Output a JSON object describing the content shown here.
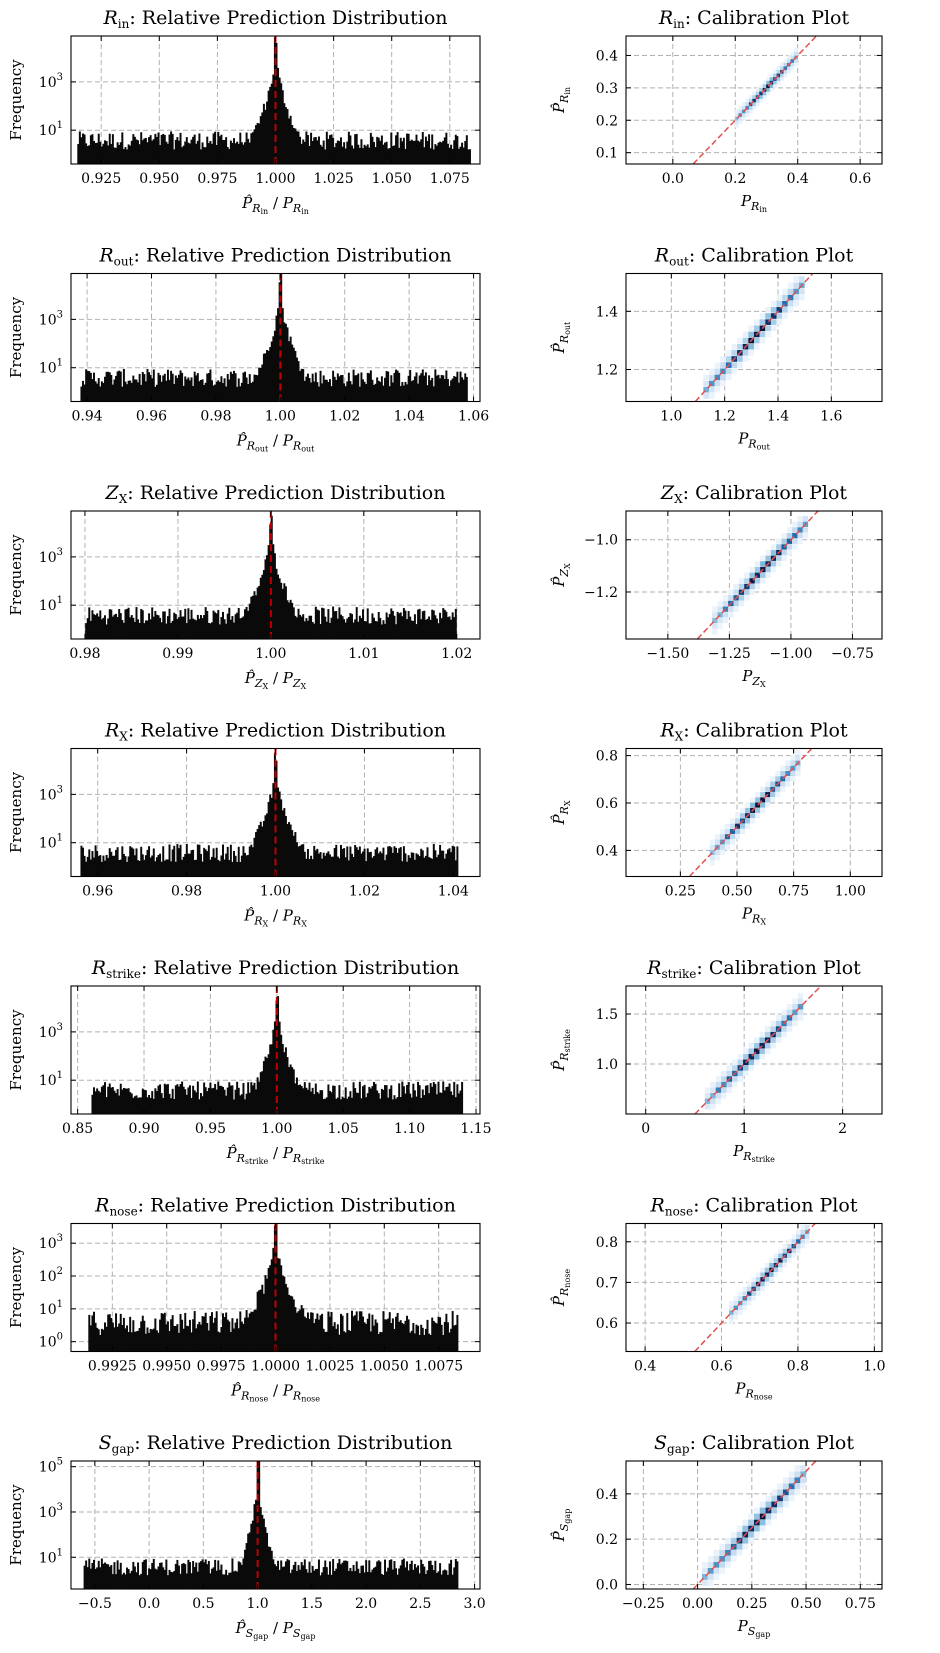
{
  "chart_data": [
    {
      "type": "bar",
      "title": {
        "var": "R",
        "sub": "in",
        "rest": ": Relative Prediction Distribution"
      },
      "xlabel": {
        "var": "R",
        "sub": "in"
      },
      "ylabel": "Frequency",
      "xlim": [
        0.912,
        1.088
      ],
      "xticks": [
        "0.925",
        "0.950",
        "0.975",
        "1.000",
        "1.025",
        "1.050",
        "1.075"
      ],
      "yscale": "log",
      "ylim_log10": [
        -0.4,
        4.9
      ],
      "yticks": [
        {
          "base": "10",
          "exp": "3",
          "log": 3
        },
        {
          "base": "10",
          "exp": "1",
          "log": 1
        }
      ],
      "reference_line_x": 1.0,
      "peak": 1.0,
      "peak_log10": 4.7,
      "tail_width": 0.0075,
      "tails": [
        0.915,
        1.084
      ],
      "grid": true
    },
    {
      "type": "bar",
      "title": {
        "var": "R",
        "sub": "out",
        "rest": ": Relative Prediction Distribution"
      },
      "xlabel": {
        "var": "R",
        "sub": "out"
      },
      "ylabel": "Frequency",
      "xlim": [
        0.935,
        1.062
      ],
      "xticks": [
        "0.94",
        "0.96",
        "0.98",
        "1.00",
        "1.02",
        "1.04",
        "1.06"
      ],
      "yscale": "log",
      "ylim_log10": [
        -0.4,
        4.9
      ],
      "yticks": [
        {
          "base": "10",
          "exp": "3",
          "log": 3
        },
        {
          "base": "10",
          "exp": "1",
          "log": 1
        }
      ],
      "reference_line_x": 1.0,
      "peak": 1.0,
      "peak_log10": 4.7,
      "tail_width": 0.0055,
      "tails": [
        0.938,
        1.058
      ],
      "grid": true
    },
    {
      "type": "bar",
      "title": {
        "var": "Z",
        "sub": "X",
        "rest": ": Relative Prediction Distribution"
      },
      "xlabel": {
        "var": "Z",
        "sub": "X"
      },
      "ylabel": "Frequency",
      "xlim": [
        0.9785,
        1.0225
      ],
      "xticks": [
        "0.98",
        "0.99",
        "1.00",
        "1.01",
        "1.02"
      ],
      "yscale": "log",
      "ylim_log10": [
        -0.4,
        4.9
      ],
      "yticks": [
        {
          "base": "10",
          "exp": "3",
          "log": 3
        },
        {
          "base": "10",
          "exp": "1",
          "log": 1
        }
      ],
      "reference_line_x": 1.0,
      "peak": 1.0,
      "peak_log10": 4.5,
      "tail_width": 0.0022,
      "tails": [
        0.98,
        1.02
      ],
      "grid": true
    },
    {
      "type": "bar",
      "title": {
        "var": "R",
        "sub": "X",
        "rest": ": Relative Prediction Distribution"
      },
      "xlabel": {
        "var": "R",
        "sub": "X"
      },
      "ylabel": "Frequency",
      "xlim": [
        0.954,
        1.046
      ],
      "xticks": [
        "0.96",
        "0.98",
        "1.00",
        "1.02",
        "1.04"
      ],
      "yscale": "log",
      "ylim_log10": [
        -0.4,
        4.9
      ],
      "yticks": [
        {
          "base": "10",
          "exp": "3",
          "log": 3
        },
        {
          "base": "10",
          "exp": "1",
          "log": 1
        }
      ],
      "reference_line_x": 1.0,
      "peak": 1.0,
      "peak_log10": 4.5,
      "tail_width": 0.0048,
      "tails": [
        0.956,
        1.041
      ],
      "grid": true
    },
    {
      "type": "bar",
      "title": {
        "var": "R",
        "sub": "strike",
        "rest": ": Relative Prediction Distribution"
      },
      "xlabel": {
        "var": "R",
        "sub": "strike"
      },
      "ylabel": "Frequency",
      "xlim": [
        0.845,
        1.153
      ],
      "xticks": [
        "0.85",
        "0.90",
        "0.95",
        "1.00",
        "1.05",
        "1.10",
        "1.15"
      ],
      "yscale": "log",
      "ylim_log10": [
        -0.4,
        4.9
      ],
      "yticks": [
        {
          "base": "10",
          "exp": "3",
          "log": 3
        },
        {
          "base": "10",
          "exp": "1",
          "log": 1
        }
      ],
      "reference_line_x": 1.0,
      "peak": 1.0,
      "peak_log10": 4.5,
      "tail_width": 0.014,
      "tails": [
        0.86,
        1.14
      ],
      "grid": true
    },
    {
      "type": "bar",
      "title": {
        "var": "R",
        "sub": "nose",
        "rest": ": Relative Prediction Distribution"
      },
      "xlabel": {
        "var": "R",
        "sub": "nose"
      },
      "ylabel": "Frequency",
      "xlim": [
        0.9906,
        1.0094
      ],
      "xticks": [
        "0.9925",
        "0.9950",
        "0.9975",
        "1.0000",
        "1.0025",
        "1.0050",
        "1.0075"
      ],
      "yscale": "log",
      "ylim_log10": [
        -0.3,
        3.6
      ],
      "yticks": [
        {
          "base": "10",
          "exp": "3",
          "log": 3
        },
        {
          "base": "10",
          "exp": "2",
          "log": 2
        },
        {
          "base": "10",
          "exp": "1",
          "log": 1
        },
        {
          "base": "10",
          "exp": "0",
          "log": 0
        }
      ],
      "reference_line_x": 1.0,
      "peak": 1.0,
      "peak_log10": 3.4,
      "tail_width": 0.0022,
      "tails": [
        0.9914,
        1.0084
      ],
      "grid": true
    },
    {
      "type": "bar",
      "title": {
        "var": "S",
        "sub": "gap",
        "rest": ": Relative Prediction Distribution"
      },
      "xlabel": {
        "var": "S",
        "sub": "gap"
      },
      "ylabel": "Frequency",
      "xlim": [
        -0.72,
        3.05
      ],
      "xticks": [
        "−0.5",
        "0.0",
        "0.5",
        "1.0",
        "1.5",
        "2.0",
        "2.5",
        "3.0"
      ],
      "yscale": "log",
      "ylim_log10": [
        -0.4,
        5.25
      ],
      "yticks": [
        {
          "base": "10",
          "exp": "5",
          "log": 5
        },
        {
          "base": "10",
          "exp": "3",
          "log": 3
        },
        {
          "base": "10",
          "exp": "1",
          "log": 1
        }
      ],
      "reference_line_x": 1.0,
      "peak": 1.0,
      "peak_log10": 5.2,
      "tail_width": 0.09,
      "tails": [
        -0.6,
        2.85
      ],
      "grid": true
    },
    {
      "type": "heatmap",
      "title": {
        "var": "R",
        "sub": "in",
        "rest": ": Calibration Plot"
      },
      "xlabel": {
        "var": "R",
        "sub": "in"
      },
      "ylabel": {
        "var": "R",
        "sub": "in"
      },
      "xlim": [
        -0.15,
        0.67
      ],
      "ylim": [
        0.065,
        0.46
      ],
      "xticks": [
        "0.0",
        "0.2",
        "0.4",
        "0.6"
      ],
      "yticks": [
        "0.1",
        "0.2",
        "0.3",
        "0.4"
      ],
      "identity_line": true,
      "diagonal_range": [
        0.2,
        0.4
      ],
      "spread": 0.015,
      "grid": true
    },
    {
      "type": "heatmap",
      "title": {
        "var": "R",
        "sub": "out",
        "rest": ": Calibration Plot"
      },
      "xlabel": {
        "var": "R",
        "sub": "out"
      },
      "ylabel": {
        "var": "R",
        "sub": "out"
      },
      "xlim": [
        0.83,
        1.79
      ],
      "ylim": [
        1.09,
        1.53
      ],
      "xticks": [
        "1.0",
        "1.2",
        "1.4",
        "1.6"
      ],
      "yticks": [
        "1.2",
        "1.4"
      ],
      "identity_line": true,
      "diagonal_range": [
        1.12,
        1.5
      ],
      "spread": 0.02,
      "grid": true
    },
    {
      "type": "heatmap",
      "title": {
        "var": "Z",
        "sub": "X",
        "rest": ": Calibration Plot"
      },
      "xlabel": {
        "var": "Z",
        "sub": "X"
      },
      "ylabel": {
        "var": "Z",
        "sub": "X"
      },
      "xlim": [
        -1.67,
        -0.63
      ],
      "ylim": [
        -1.38,
        -0.89
      ],
      "xticks": [
        "−1.50",
        "−1.25",
        "−1.00",
        "−0.75"
      ],
      "yticks": [
        "−1.0",
        "−1.2"
      ],
      "identity_line": true,
      "diagonal_range": [
        -1.32,
        -0.93
      ],
      "spread": 0.02,
      "grid": true
    },
    {
      "type": "heatmap",
      "title": {
        "var": "R",
        "sub": "X",
        "rest": ": Calibration Plot"
      },
      "xlabel": {
        "var": "R",
        "sub": "X"
      },
      "ylabel": {
        "var": "R",
        "sub": "X"
      },
      "xlim": [
        0.01,
        1.14
      ],
      "ylim": [
        0.29,
        0.83
      ],
      "xticks": [
        "0.25",
        "0.50",
        "0.75",
        "1.00"
      ],
      "yticks": [
        "0.4",
        "0.6",
        "0.8"
      ],
      "identity_line": true,
      "diagonal_range": [
        0.38,
        0.78
      ],
      "spread": 0.02,
      "grid": true
    },
    {
      "type": "heatmap",
      "title": {
        "var": "R",
        "sub": "strike",
        "rest": ": Calibration Plot"
      },
      "xlabel": {
        "var": "R",
        "sub": "strike"
      },
      "ylabel": {
        "var": "R",
        "sub": "strike"
      },
      "xlim": [
        -0.2,
        2.4
      ],
      "ylim": [
        0.5,
        1.78
      ],
      "xticks": [
        "0",
        "1",
        "2"
      ],
      "yticks": [
        "1.0",
        "1.5"
      ],
      "identity_line": true,
      "diagonal_range": [
        0.6,
        1.6
      ],
      "spread": 0.07,
      "grid": true
    },
    {
      "type": "heatmap",
      "title": {
        "var": "R",
        "sub": "nose",
        "rest": ": Calibration Plot"
      },
      "xlabel": {
        "var": "R",
        "sub": "nose"
      },
      "ylabel": {
        "var": "R",
        "sub": "nose"
      },
      "xlim": [
        0.35,
        1.02
      ],
      "ylim": [
        0.53,
        0.845
      ],
      "xticks": [
        "0.4",
        "0.6",
        "0.8",
        "1.0"
      ],
      "yticks": [
        "0.6",
        "0.7",
        "0.8"
      ],
      "identity_line": true,
      "diagonal_range": [
        0.62,
        0.83
      ],
      "spread": 0.008,
      "grid": true
    },
    {
      "type": "heatmap",
      "title": {
        "var": "S",
        "sub": "gap",
        "rest": ": Calibration Plot"
      },
      "xlabel": {
        "var": "S",
        "sub": "gap"
      },
      "ylabel": {
        "var": "S",
        "sub": "gap"
      },
      "xlim": [
        -0.33,
        0.85
      ],
      "ylim": [
        -0.02,
        0.545
      ],
      "xticks": [
        "−0.25",
        "0.00",
        "0.25",
        "0.50",
        "0.75"
      ],
      "yticks": [
        "0.0",
        "0.2",
        "0.4"
      ],
      "identity_line": true,
      "diagonal_range": [
        0.02,
        0.5
      ],
      "spread": 0.025,
      "grid": true
    }
  ]
}
